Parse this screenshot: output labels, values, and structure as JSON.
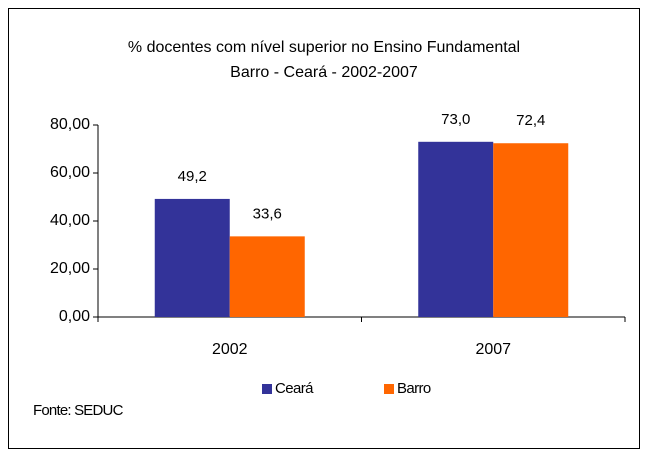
{
  "chart_data": {
    "type": "bar",
    "title": "% docentes com nível superior no Ensino Fundamental",
    "subtitle": "Barro - Ceará - 2002-2007",
    "categories": [
      "2002",
      "2007"
    ],
    "series": [
      {
        "name": "Ceará",
        "color": "#333399",
        "values": [
          49.2,
          73.0
        ],
        "value_labels": [
          "49,2",
          "73,0"
        ]
      },
      {
        "name": "Barro",
        "color": "#ff6600",
        "values": [
          33.6,
          72.4
        ],
        "value_labels": [
          "33,6",
          "72,4"
        ]
      }
    ],
    "ylim": [
      0,
      80
    ],
    "yticks": [
      {
        "value": 0,
        "label": "0,00"
      },
      {
        "value": 20,
        "label": "20,00"
      },
      {
        "value": 40,
        "label": "40,00"
      },
      {
        "value": 60,
        "label": "60,00"
      },
      {
        "value": 80,
        "label": "80,00"
      }
    ],
    "legend": "bottom",
    "source": "Fonte: SEDUC"
  }
}
